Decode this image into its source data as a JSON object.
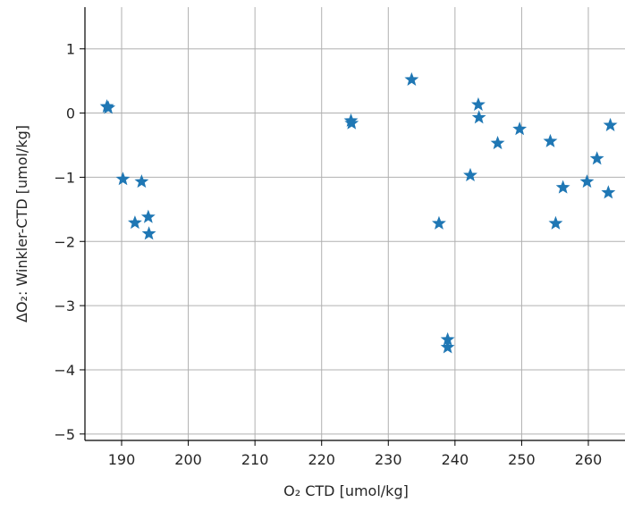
{
  "chart_data": {
    "type": "scatter",
    "title": "",
    "xlabel": "O₂ CTD [umol/kg]",
    "ylabel": "ΔO₂: Winkler-CTD [umol/kg]",
    "xlim": [
      184.5,
      265.5
    ],
    "ylim": [
      -5.1,
      1.65
    ],
    "xticks": [
      190,
      200,
      210,
      220,
      230,
      240,
      250,
      260
    ],
    "yticks": [
      1,
      0,
      -1,
      -2,
      -3,
      -4,
      -5
    ],
    "grid": true,
    "marker": "star",
    "color": "#1f77b4",
    "series": [
      {
        "x": [
          187.8,
          188.0,
          190.2,
          193.0,
          192.0,
          194.0,
          194.1,
          224.4,
          224.5,
          233.5,
          237.6,
          238.9,
          238.9,
          242.3,
          243.5,
          243.6,
          246.4,
          249.7,
          254.3,
          255.1,
          256.2,
          259.8,
          261.3,
          263.0,
          263.3
        ],
        "y": [
          0.1,
          0.08,
          -1.03,
          -1.07,
          -1.71,
          -1.62,
          -1.88,
          -0.12,
          -0.16,
          0.52,
          -1.72,
          -3.53,
          -3.65,
          -0.97,
          0.13,
          -0.07,
          -0.47,
          -0.25,
          -0.44,
          -1.72,
          -1.16,
          -1.07,
          -0.71,
          -1.24,
          -0.19
        ]
      }
    ]
  }
}
